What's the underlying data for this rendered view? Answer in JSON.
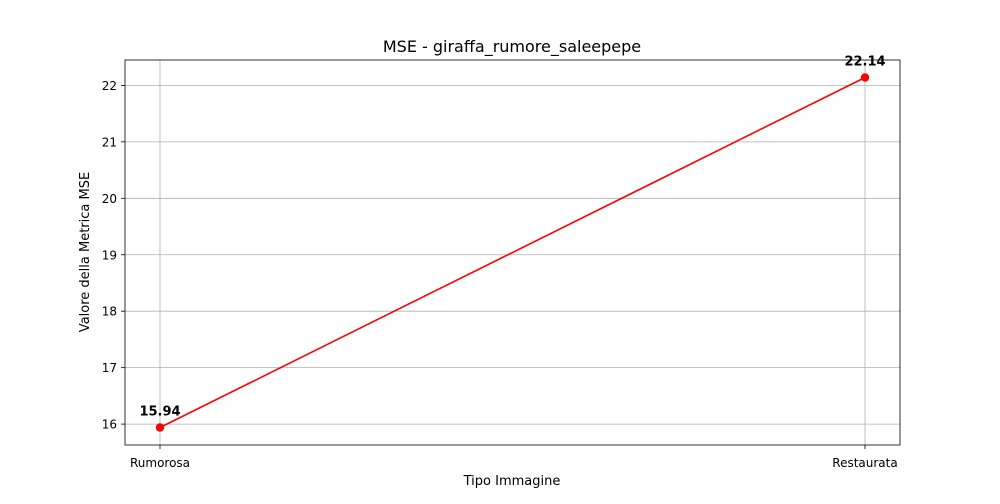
{
  "chart_data": {
    "type": "line",
    "title": "MSE - giraffa_rumore_saleepepe",
    "xlabel": "Tipo Immagine",
    "ylabel": "Valore della Metrica MSE",
    "categories": [
      "Rumorosa",
      "Restaurata"
    ],
    "series": [
      {
        "values": [
          15.94,
          22.14
        ],
        "data_labels": [
          "15.94",
          "22.14"
        ],
        "color": "#ff0000",
        "marker": "circle"
      }
    ],
    "ylim": [
      15.63,
      22.45
    ],
    "yticks": [
      16,
      17,
      18,
      19,
      20,
      21,
      22
    ],
    "grid": true,
    "legend": "none"
  }
}
